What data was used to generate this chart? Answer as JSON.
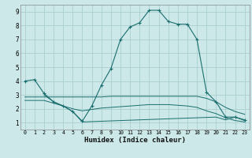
{
  "xlabel": "Humidex (Indice chaleur)",
  "ylabel": "",
  "bg_color": "#cce8e8",
  "line_color": "#1a6e6e",
  "grid_color": "#aacfcf",
  "xlim": [
    -0.5,
    23.5
  ],
  "ylim": [
    0.5,
    9.5
  ],
  "xticks": [
    0,
    1,
    2,
    3,
    4,
    5,
    6,
    7,
    8,
    9,
    10,
    11,
    12,
    13,
    14,
    15,
    16,
    17,
    18,
    19,
    20,
    21,
    22,
    23
  ],
  "yticks": [
    1,
    2,
    3,
    4,
    5,
    6,
    7,
    8,
    9
  ],
  "main_x": [
    0,
    1,
    2,
    3,
    4,
    5,
    6,
    7,
    8,
    9,
    10,
    11,
    12,
    13,
    14,
    15,
    16,
    17,
    18,
    19,
    20,
    21,
    22,
    23
  ],
  "main_y": [
    4.0,
    4.1,
    3.1,
    2.5,
    2.2,
    1.8,
    1.1,
    2.2,
    3.7,
    4.9,
    7.0,
    7.9,
    8.2,
    9.1,
    9.1,
    8.3,
    8.1,
    8.1,
    7.0,
    3.2,
    2.5,
    1.4,
    1.4,
    1.2
  ],
  "line2_x": [
    0,
    1,
    2,
    3,
    4,
    5,
    6,
    7,
    8,
    9,
    10,
    11,
    12,
    13,
    14,
    15,
    16,
    17,
    18,
    19,
    20,
    21,
    22,
    23
  ],
  "line2_y": [
    2.85,
    2.85,
    2.85,
    2.85,
    2.85,
    2.85,
    2.85,
    2.85,
    2.85,
    2.9,
    2.9,
    2.9,
    2.9,
    2.9,
    2.9,
    2.9,
    2.9,
    2.9,
    2.9,
    2.75,
    2.5,
    2.1,
    1.8,
    1.6
  ],
  "line3_x": [
    0,
    1,
    2,
    3,
    4,
    5,
    6,
    7,
    8,
    9,
    10,
    11,
    12,
    13,
    14,
    15,
    16,
    17,
    18,
    19,
    20,
    21,
    22,
    23
  ],
  "line3_y": [
    2.6,
    2.6,
    2.6,
    2.4,
    2.2,
    2.0,
    1.85,
    1.95,
    2.05,
    2.1,
    2.15,
    2.2,
    2.25,
    2.3,
    2.3,
    2.3,
    2.25,
    2.2,
    2.1,
    1.85,
    1.65,
    1.35,
    1.15,
    1.05
  ],
  "line4_x": [
    2,
    3,
    4,
    5,
    6,
    20,
    21,
    22,
    23
  ],
  "line4_y": [
    3.0,
    2.5,
    2.2,
    1.8,
    1.05,
    1.4,
    1.2,
    1.4,
    1.15
  ]
}
